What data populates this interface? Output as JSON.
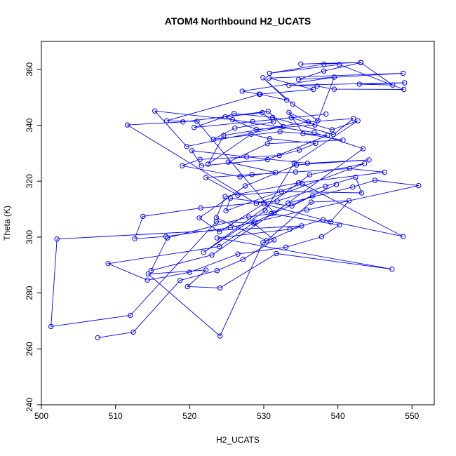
{
  "colors": {
    "series": "#0000ff",
    "axis": "#000000",
    "background": "#ffffff"
  },
  "chart_data": {
    "type": "line",
    "title": "ATOM4 Northbound H2_UCATS",
    "xlabel": "H2_UCATS",
    "ylabel": "Theta (K)",
    "xlim": [
      500,
      553
    ],
    "ylim": [
      240,
      370
    ],
    "x_ticks": [
      500,
      510,
      520,
      530,
      540,
      550
    ],
    "y_ticks": [
      240,
      260,
      280,
      300,
      320,
      340,
      360
    ],
    "grid": false,
    "legend": "none",
    "markers": "open-circle",
    "series": [
      {
        "x": [
          507.6,
          512.4,
          518.7,
          523.7,
          527.2,
          531.4,
          528.6,
          523.6,
          512.0,
          501.3,
          502.1,
          535.1,
          529.9,
          524.1,
          514.4,
          522.2,
          519.7,
          524.1,
          531.7,
          547.3,
          523.7,
          533.5,
          538.0,
          548.8,
          535.2,
          524.9,
          525.5,
          533.8,
          536.6,
          539.8,
          528.8,
          524.0,
          509.0,
          514.3,
          520.0,
          526.5,
          533.0,
          537.8,
          540.2,
          531.0,
          528.0,
          517.0,
          514.8,
          523.0,
          533.3,
          542.0,
          545.0,
          550.9,
          535.8,
          525.5,
          516.8,
          512.6,
          513.7,
          521.5,
          531.8,
          538.3,
          542.4,
          543.2,
          532.4,
          526.5,
          522.2,
          528.4,
          534.3,
          541.6,
          546.3,
          534.7,
          524.8,
          523.6,
          530.4,
          536.4,
          541.5,
          539.0,
          530.0,
          524.0,
          521.3,
          527.5,
          534.4,
          544.2,
          535.9,
          527.7,
          520.3,
          521.6,
          530.5,
          538.6,
          532.2,
          523.2,
          526.1,
          531.3,
          529.8,
          524.8,
          529.0,
          536.9,
          533.4,
          535.3,
          540.7,
          530.5,
          525.2,
          531.6,
          526.8,
          519.0,
          521.4,
          532.1,
          534.8,
          537.0,
          530.8,
          528.3,
          522.5,
          524.6,
          536.0,
          542.1,
          539.4,
          531.2,
          526.0,
          520.6,
          528.5,
          538.4,
          533.7,
          539.2,
          542.7,
          534.1,
          530.2,
          521.9,
          536.2,
          543.6,
          529.0,
          511.6,
          519.1,
          530.6,
          532.6,
          519.6,
          515.3,
          525.8,
          536.8,
          543.4,
          531.4,
          521.0,
          516.9,
          529.5,
          533.1,
          529.9,
          533.9,
          537.3,
          539.5,
          527.1,
          529.4,
          536.7,
          530.7,
          548.8,
          534.7,
          538.1,
          543.1,
          547.4,
          542.9,
          549.0,
          533.4,
          537.2,
          539.5,
          548.9,
          540.2,
          530.8,
          538.1,
          543.1,
          535.0
        ],
        "y": [
          264.0,
          266.0,
          284.5,
          288.0,
          292.0,
          299.0,
          305.0,
          305.5,
          272.0,
          268.0,
          299.3,
          304.0,
          298.0,
          264.6,
          286.8,
          288.2,
          282.3,
          281.8,
          294.1,
          288.5,
          299.7,
          302.8,
          306.2,
          300.2,
          319.1,
          309.4,
          313.9,
          311.1,
          314.8,
          318.8,
          305.4,
          296.6,
          290.5,
          284.6,
          287.4,
          293.9,
          296.4,
          300.1,
          304.3,
          308.4,
          307.2,
          299.7,
          288.0,
          293.6,
          312.2,
          317.9,
          320.3,
          318.4,
          309.7,
          303.4,
          300.2,
          299.4,
          307.4,
          310.4,
          312.9,
          318.2,
          321.4,
          315.8,
          316.3,
          315.0,
          321.3,
          322.4,
          323.3,
          324.5,
          323.2,
          319.4,
          314.5,
          306.9,
          298.7,
          312.5,
          313.0,
          305.4,
          311.9,
          301.9,
          306.8,
          318.3,
          325.8,
          327.6,
          326.4,
          328.7,
          330.9,
          325.5,
          327.7,
          336.4,
          337.7,
          335.0,
          339.0,
          341.2,
          344.5,
          343.0,
          338.5,
          340.1,
          344.6,
          337.0,
          334.7,
          333.4,
          326.8,
          323.1,
          321.6,
          325.5,
          327.8,
          329.2,
          331.1,
          333.5,
          335.2,
          336.8,
          326.1,
          336.4,
          341.2,
          342.4,
          336.7,
          342.8,
          344.2,
          339.2,
          341.3,
          344.0,
          342.7,
          338.4,
          341.6,
          326.5,
          309.4,
          294.5,
          322.3,
          326.3,
          312.0,
          340.1,
          341.2,
          345.0,
          339.5,
          332.4,
          345.1,
          342.0,
          337.4,
          331.6,
          308.6,
          341.4,
          341.6,
          351.1,
          349.0,
          357.0,
          347.6,
          341.7,
          357.2,
          352.2,
          351.1,
          352.8,
          356.9,
          358.6,
          356.4,
          359.4,
          362.4,
          354.4,
          354.7,
          355.2,
          354.3,
          354.0,
          352.9,
          352.8,
          361.7,
          358.6,
          361.9,
          362.5,
          361.9
        ]
      }
    ]
  }
}
